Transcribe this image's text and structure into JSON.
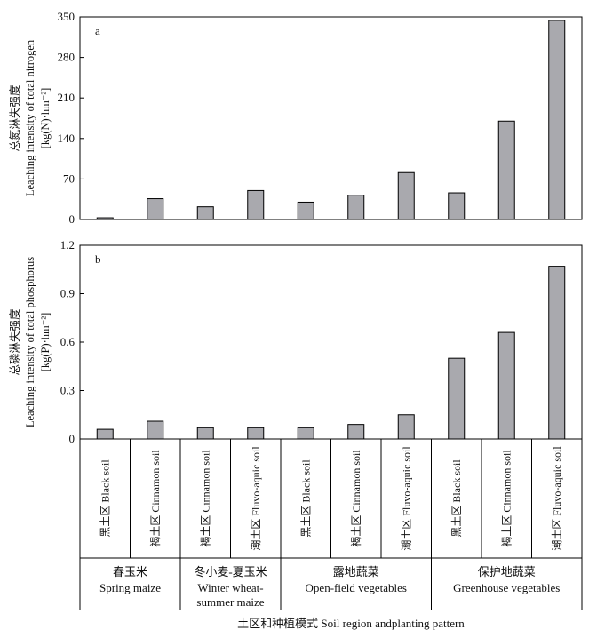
{
  "chart_data": [
    {
      "type": "bar",
      "panel_label": "a",
      "ylabel_zh": "总氮淋失强度",
      "ylabel_en": "Leaching intensity of total nitrogen",
      "yunit": "[kg(N)·hm⁻²]",
      "ylim": [
        0,
        350
      ],
      "yticks": [
        "0",
        "70",
        "140",
        "210",
        "280",
        "350"
      ],
      "categories": [
        "黑土区 Black soil",
        "褐土区 Cinnamon soil",
        "褐土区 Cinnamon soil",
        "潮土区 Fluvo-aquic soil",
        "黑土区 Black soil",
        "褐土区 Cinnamon soil",
        "潮土区 Fluvo-aquic soil",
        "黑土区 Black soil",
        "褐土区 Cinnamon soil",
        "潮土区 Fluvo-aquic soil"
      ],
      "values": [
        3,
        36,
        22,
        50,
        30,
        42,
        81,
        46,
        170,
        344
      ],
      "bar_color": "#a9a9ae"
    },
    {
      "type": "bar",
      "panel_label": "b",
      "ylabel_zh": "总磷淋失强度",
      "ylabel_en": "Leaching intensity of total phosphorus",
      "yunit": "[kg(P)·hm⁻²]",
      "ylim": [
        0,
        1.2
      ],
      "yticks": [
        "0",
        "0.3",
        "0.6",
        "0.9",
        "1.2"
      ],
      "categories": [
        "黑土区 Black soil",
        "褐土区 Cinnamon soil",
        "褐土区 Cinnamon soil",
        "潮土区 Fluvo-aquic soil",
        "黑土区 Black soil",
        "褐土区 Cinnamon soil",
        "潮土区 Fluvo-aquic soil",
        "黑土区 Black soil",
        "褐土区 Cinnamon soil",
        "潮土区 Fluvo-aquic soil"
      ],
      "values": [
        0.06,
        0.11,
        0.07,
        0.07,
        0.07,
        0.09,
        0.15,
        0.5,
        0.66,
        1.07
      ],
      "bar_color": "#a9a9ae"
    }
  ],
  "groups": [
    {
      "zh": "春玉米",
      "en": [
        "Spring maize"
      ],
      "count": 2
    },
    {
      "zh": "冬小麦-夏玉米",
      "en": [
        "Winter wheat-",
        "summer maize"
      ],
      "count": 2
    },
    {
      "zh": "露地蔬菜",
      "en": [
        "Open-field vegetables"
      ],
      "count": 3
    },
    {
      "zh": "保护地蔬菜",
      "en": [
        "Greenhouse vegetables"
      ],
      "count": 3
    }
  ],
  "xlabel": "土区和种植模式 Soil region andplanting pattern"
}
